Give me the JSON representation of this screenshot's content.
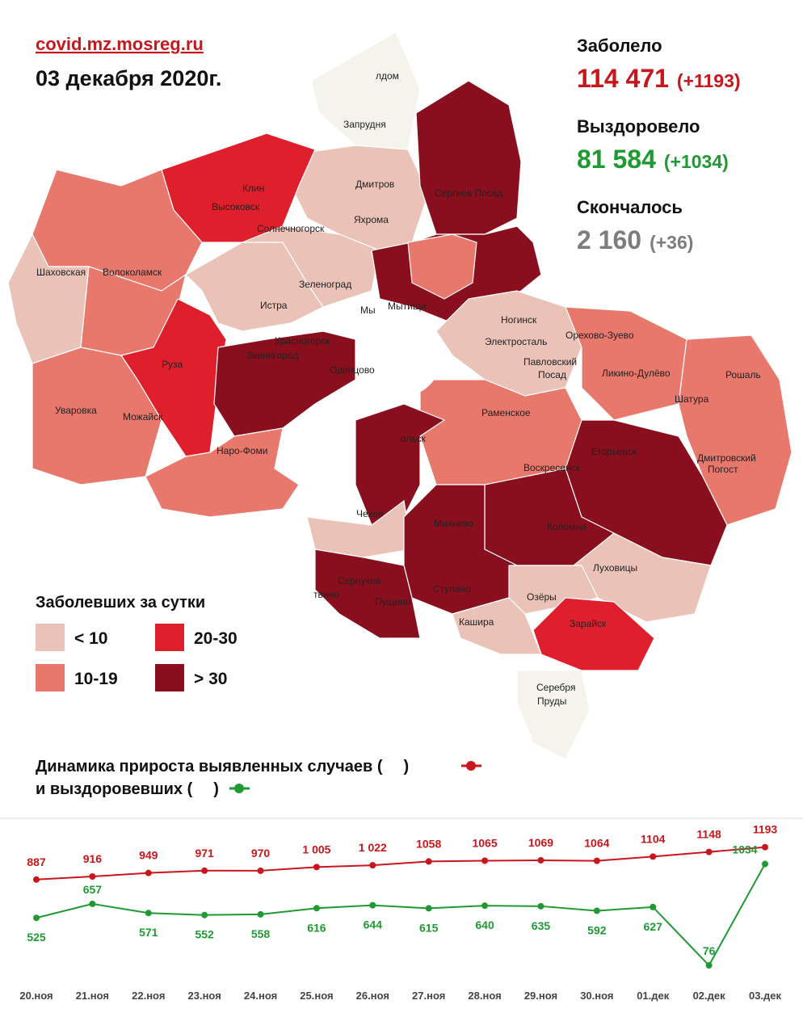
{
  "header": {
    "site": "covid.mz.mosreg.ru",
    "date": "03 декабря 2020г."
  },
  "stats": [
    {
      "label": "Заболело",
      "value": "114 471",
      "delta": "(+1193)",
      "color": "#c8161d"
    },
    {
      "label": "Выздоровело",
      "value": "81 584",
      "delta": "(+1034)",
      "color": "#1f9a33"
    },
    {
      "label": "Скончалось",
      "value": "2 160",
      "delta": "(+36)",
      "color": "#7d7d7d"
    }
  ],
  "legend": {
    "title": "Заболевших за сутки",
    "items": [
      {
        "label": "< 10",
        "color": "#ebc2b8"
      },
      {
        "label": "10-19",
        "color": "#e8776c"
      },
      {
        "label": "20-30",
        "color": "#e01f2d"
      },
      {
        "label": "> 30",
        "color": "#8a0f1e"
      }
    ]
  },
  "map_labels": [
    "лдом",
    "Запрудня",
    "Дмитров",
    "Клин",
    "Высоковск",
    "Сергиев Посад",
    "Яхрома",
    "Солнечногорск",
    "Шаховская",
    "Волоколамск",
    "Зеленоград",
    "Истра",
    "Мы",
    "Мытищи",
    "Ногинск",
    "Электросталь",
    "Красногорск",
    "Звенигород",
    "Одинцово",
    "Орехово-Зуево",
    "Павловский",
    "Посад",
    "Руза",
    "Ликино-Дулёво",
    "Рошаль",
    "Шатура",
    "Уваровка",
    "Можайск",
    "Раменское",
    "Наро-Фоми",
    "ольск",
    "Егорьевск",
    "Воскресенск",
    "Дмитровский",
    "Погост",
    "Чехов",
    "Михнево",
    "Коломна",
    "Луховицы",
    "Серпухов",
    "твино",
    "Ступино",
    "Пущино",
    "Озёры",
    "Кашира",
    "Зарайск",
    "Серебря",
    "Пруды"
  ],
  "chart_data": {
    "type": "line",
    "title": "Динамика прироста выявленных случаев (",
    "subtitle": "и выздоровевших (",
    "close": ")",
    "categories": [
      "20.ноя",
      "21.ноя",
      "22.ноя",
      "23.ноя",
      "24.ноя",
      "25.ноя",
      "26.ноя",
      "27.ноя",
      "28.ноя",
      "29.ноя",
      "30.ноя",
      "01.дек",
      "02.дек",
      "03.дек"
    ],
    "series": [
      {
        "color": "#c8161d",
        "values": [
          887,
          916,
          949,
          971,
          970,
          1005,
          1022,
          1058,
          1065,
          1069,
          1064,
          1104,
          1148,
          1193
        ],
        "value_labels": [
          "887",
          "916",
          "949",
          "971",
          "970",
          "1 005",
          "1 022",
          "1058",
          "1065",
          "1069",
          "1064",
          "1104",
          "1148",
          "1193"
        ]
      },
      {
        "color": "#1f9a33",
        "values": [
          525,
          657,
          571,
          552,
          558,
          616,
          644,
          615,
          640,
          635,
          592,
          627,
          76,
          1034
        ]
      }
    ]
  }
}
